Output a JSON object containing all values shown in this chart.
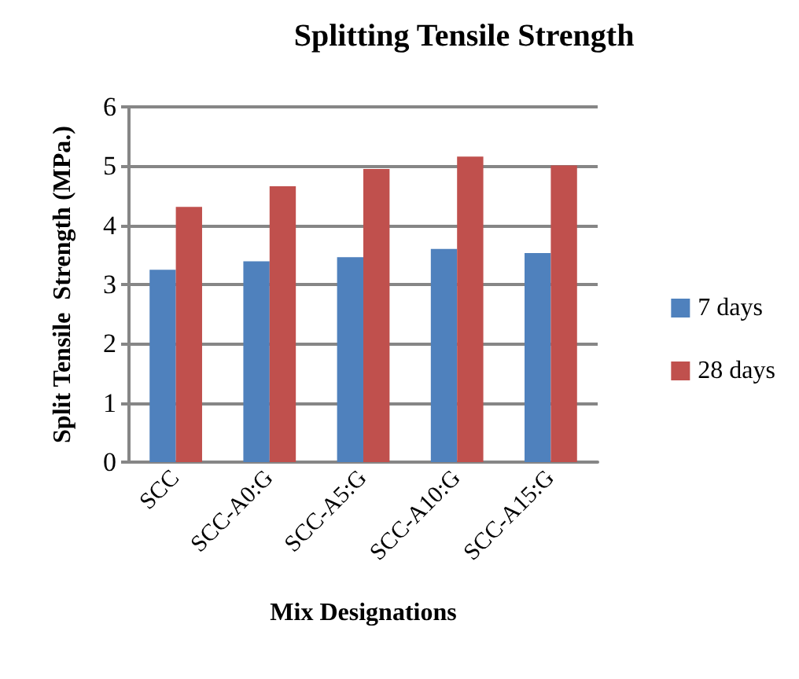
{
  "chart_data": {
    "type": "bar",
    "title": "Splitting Tensile Strength",
    "xlabel": "Mix Designations",
    "ylabel": "Split Tensile  Strength (MPa.)",
    "categories": [
      "SCC",
      "SCC-A0:G",
      "SCC-A5:G",
      "SCC-A10:G",
      "SCC-A15:G"
    ],
    "series": [
      {
        "name": "7 days",
        "color": "#4f81bd",
        "values": [
          3.25,
          3.39,
          3.46,
          3.6,
          3.53
        ]
      },
      {
        "name": "28 days",
        "color": "#c0504d",
        "values": [
          4.31,
          4.66,
          4.95,
          5.16,
          5.01
        ]
      }
    ],
    "ylim": [
      0,
      6
    ],
    "yticks": [
      0,
      1,
      2,
      3,
      4,
      5,
      6
    ],
    "grid": "y",
    "legend": "right"
  }
}
